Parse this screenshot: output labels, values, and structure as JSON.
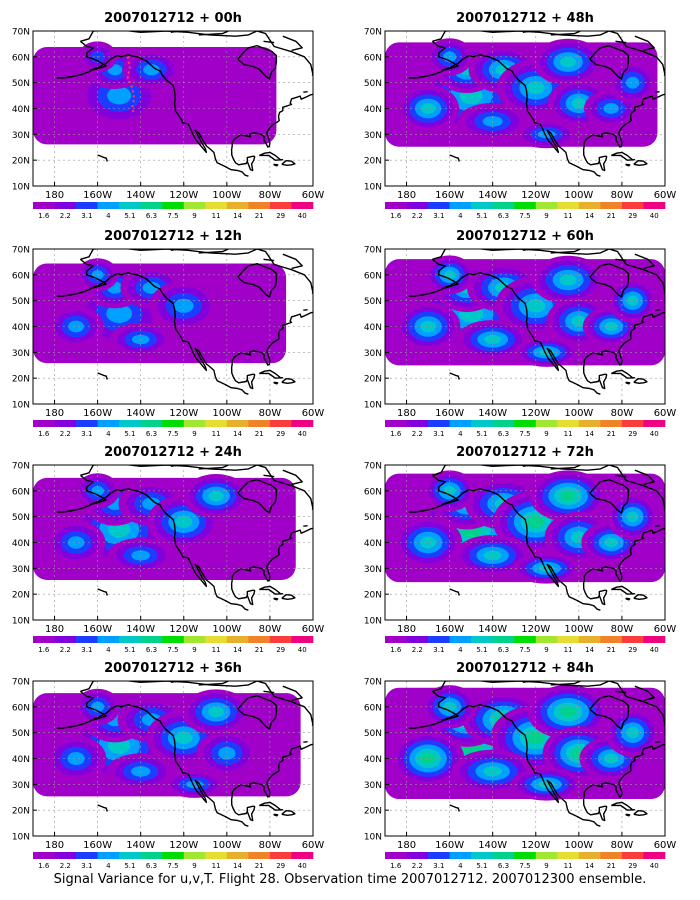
{
  "panels": [
    {
      "title": "2007012712 + 00h",
      "intensity": 0.3
    },
    {
      "title": "2007012712 + 12h",
      "intensity": 0.4
    },
    {
      "title": "2007012712 + 24h",
      "intensity": 0.5
    },
    {
      "title": "2007012712 + 36h",
      "intensity": 0.55
    },
    {
      "title": "2007012712 + 48h",
      "intensity": 0.6
    },
    {
      "title": "2007012712 + 60h",
      "intensity": 0.68
    },
    {
      "title": "2007012712 + 72h",
      "intensity": 0.78
    },
    {
      "title": "2007012712 + 84h",
      "intensity": 0.9
    }
  ],
  "map_extent": {
    "lon_min": -190,
    "lon_max": -60,
    "lat_min": 10,
    "lat_max": 70
  },
  "lat_ticks": [
    "10N",
    "20N",
    "30N",
    "40N",
    "50N",
    "60N",
    "70N"
  ],
  "lon_ticks": [
    "180",
    "160W",
    "140W",
    "120W",
    "100W",
    "80W",
    "60W"
  ],
  "colorbar": {
    "labels": [
      "1.6",
      "2.2",
      "3.1",
      "4",
      "5.1",
      "6.3",
      "7.5",
      "9",
      "11",
      "14",
      "21",
      "29",
      "40"
    ],
    "colors": [
      "#a000c8",
      "#8200dc",
      "#1e3cff",
      "#00a0ff",
      "#00c8c8",
      "#00d28c",
      "#00dc00",
      "#a0e632",
      "#e6dc32",
      "#e6af2d",
      "#f08228",
      "#fa3c3c",
      "#f00082"
    ]
  },
  "caption": "Signal Variance for u,v,T. Flight 28. Observation time 2007012712. 2007012300 ensemble."
}
